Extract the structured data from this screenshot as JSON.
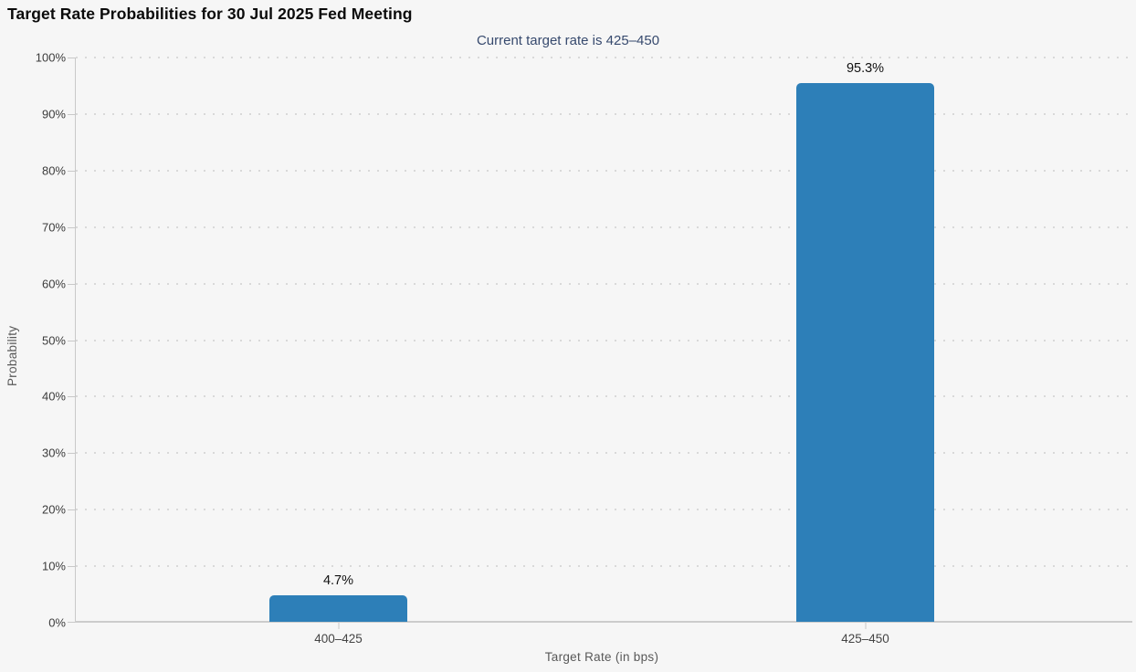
{
  "chart_data": {
    "type": "bar",
    "title": "Target Rate Probabilities for 30 Jul 2025 Fed Meeting",
    "subtitle": "Current target rate is 425–450",
    "categories": [
      "400–425",
      "425–450"
    ],
    "values": [
      4.7,
      95.3
    ],
    "value_labels": [
      "4.7%",
      "95.3%"
    ],
    "xlabel": "Target Rate (in bps)",
    "ylabel": "Probability",
    "ylim": [
      0,
      100
    ],
    "ytick_step": 10,
    "ytick_labels": [
      "0%",
      "10%",
      "20%",
      "30%",
      "40%",
      "50%",
      "60%",
      "70%",
      "80%",
      "90%",
      "100%"
    ],
    "grid": "horizontal-dotted",
    "legend": "none",
    "colors": {
      "bar": "#2d7fb8",
      "background": "#f6f6f6",
      "title": "#0b0b0b",
      "subtitle": "#374a6e",
      "grid": "#d9d9d9",
      "axis": "#c8c8c8",
      "tick_label": "#3c3c3c",
      "axis_title": "#585858",
      "value_label": "#111111"
    }
  }
}
